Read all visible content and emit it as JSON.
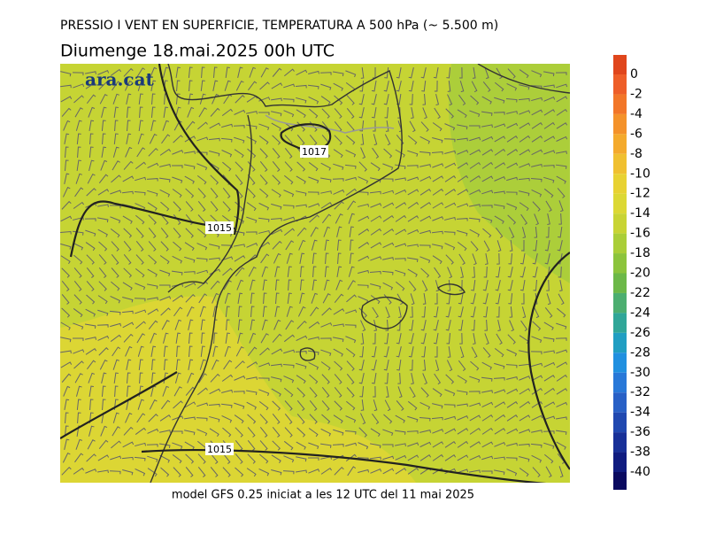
{
  "header": {
    "title": "PRESSIO I VENT EN SUPERFICIE, TEMPERATURA A 500 hPa (~ 5.500 m)",
    "subtitle": "Diumenge  18.mai.2025 00h UTC"
  },
  "logo": "ara.cat",
  "isobars": [
    {
      "label": "1017"
    },
    {
      "label": "1015"
    },
    {
      "label": "1015"
    }
  ],
  "footer": "model GFS 0.25 iniciat a les 12 UTC del 11 mai 2025",
  "colorbar": {
    "ticks": [
      0,
      -2,
      -4,
      -6,
      -8,
      -10,
      -12,
      -14,
      -16,
      -18,
      -20,
      -22,
      -24,
      -26,
      -28,
      -30,
      -32,
      -34,
      -36,
      -38,
      -40
    ],
    "colors": [
      "#e0461c",
      "#ee5e28",
      "#f27628",
      "#f4922a",
      "#f4aa2c",
      "#f0c030",
      "#e8d232",
      "#dcd834",
      "#c8d434",
      "#aace38",
      "#8cc43c",
      "#6cb848",
      "#4cae70",
      "#30a698",
      "#209ec2",
      "#2090e0",
      "#2878d8",
      "#2860c6",
      "#2048b0",
      "#183098",
      "#101c80",
      "#0a0a60"
    ]
  }
}
